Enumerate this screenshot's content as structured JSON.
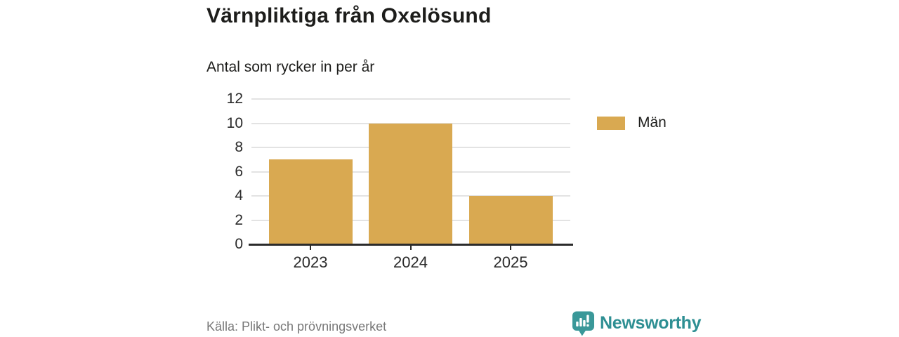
{
  "chart_data": {
    "type": "bar",
    "title": "Värnpliktiga från Oxelösund",
    "subtitle": "Antal som rycker in per år",
    "categories": [
      "2023",
      "2024",
      "2025"
    ],
    "series": [
      {
        "name": "Män",
        "values": [
          7,
          10,
          4
        ],
        "color": "#d9a951"
      }
    ],
    "ylim": [
      0,
      12
    ],
    "yticks": [
      0,
      2,
      4,
      6,
      8,
      10,
      12
    ],
    "grid": true,
    "legend_position": "right"
  },
  "footer": {
    "source": "Källa: Plikt- och prövningsverket",
    "brand": "Newsworthy"
  },
  "colors": {
    "bar": "#d9a951",
    "brand_teal": "#2e8f93",
    "icon_teal": "#3a9899",
    "grid": "#e3e3e3",
    "axis": "#2b2b2b",
    "text": "#1d1d1b",
    "muted": "#787878"
  }
}
